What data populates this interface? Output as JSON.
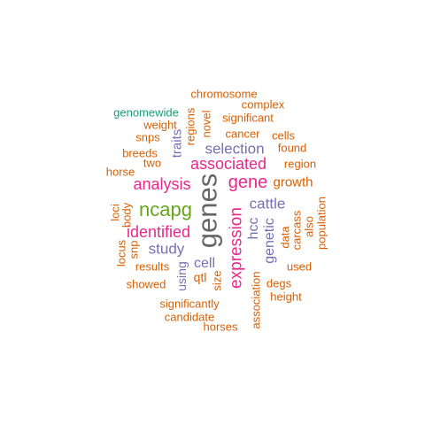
{
  "words": {
    "chromosome": "chromosome",
    "complex": "complex",
    "genomewide": "genomewide",
    "regions": "regions",
    "novel": "novel",
    "significant": "significant",
    "weight": "weight",
    "snps": "snps",
    "cancer": "cancer",
    "cells": "cells",
    "traits": "traits",
    "selection": "selection",
    "found": "found",
    "breeds": "breeds",
    "two": "two",
    "associated": "associated",
    "region": "region",
    "horse": "horse",
    "analysis": "analysis",
    "gene": "gene",
    "growth": "growth",
    "genes": "genes",
    "cattle": "cattle",
    "ncapg": "ncapg",
    "loci": "loci",
    "body": "body",
    "expression": "expression",
    "hcc": "hcc",
    "genetic": "genetic",
    "data": "data",
    "carcass": "carcass",
    "also": "also",
    "population": "population",
    "identified": "identified",
    "study": "study",
    "locus": "locus",
    "snp": "snp",
    "results": "results",
    "cell": "cell",
    "size": "size",
    "used": "used",
    "showed": "showed",
    "using": "using",
    "qtl": "qtl",
    "association": "association",
    "degs": "degs",
    "height": "height",
    "significantly": "significantly",
    "candidate": "candidate",
    "horses": "horses"
  },
  "colors": {
    "orange": "#d95f02",
    "purple": "#7570b3",
    "pink": "#e7298a",
    "green": "#66a61e",
    "teal": "#1b9e77",
    "gray": "#666666"
  }
}
